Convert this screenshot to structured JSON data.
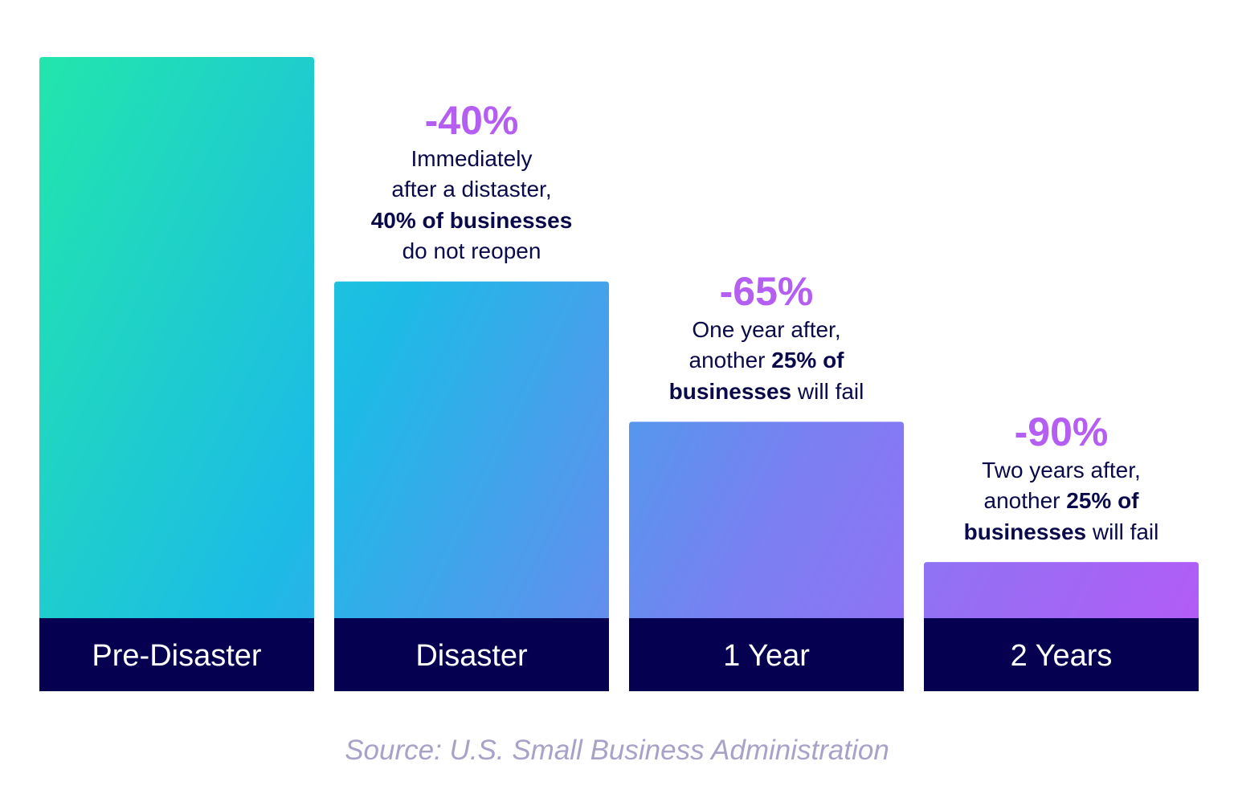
{
  "chart_data": {
    "type": "bar",
    "categories": [
      "Pre-Disaster",
      "Disaster",
      "1 Year",
      "2 Years"
    ],
    "values": [
      100,
      60,
      35,
      10
    ],
    "ylim": [
      0,
      100
    ],
    "grid": false,
    "title": "",
    "xlabel": "",
    "ylabel": "",
    "annotations": [
      null,
      {
        "delta": "-40%",
        "lines": [
          [
            {
              "t": "Immediately",
              "b": false
            }
          ],
          [
            {
              "t": "after a distaster,",
              "b": false
            }
          ],
          [
            {
              "t": "40% of businesses",
              "b": true
            }
          ],
          [
            {
              "t": "do not reopen",
              "b": false
            }
          ]
        ]
      },
      {
        "delta": "-65%",
        "lines": [
          [
            {
              "t": "One year after,",
              "b": false
            }
          ],
          [
            {
              "t": "another ",
              "b": false
            },
            {
              "t": "25% of",
              "b": true
            }
          ],
          [
            {
              "t": "businesses",
              "b": true
            },
            {
              "t": " will fail",
              "b": false
            }
          ]
        ]
      },
      {
        "delta": "-90%",
        "lines": [
          [
            {
              "t": "Two years after,",
              "b": false
            }
          ],
          [
            {
              "t": "another ",
              "b": false
            },
            {
              "t": "25% of",
              "b": true
            }
          ],
          [
            {
              "t": "businesses",
              "b": true
            },
            {
              "t": " will fail",
              "b": false
            }
          ]
        ]
      }
    ],
    "source": "Source: U.S. Small Business Administration"
  },
  "colors": {
    "gradient": [
      "#22e6ac",
      "#1cbbe6",
      "#7a80f2",
      "#b25cf6"
    ],
    "label_band": "#050050",
    "label_text": "#ffffff",
    "delta_text": "#b45ef2",
    "body_text": "#0a0a4a",
    "source_text": "#a7a2c7"
  }
}
